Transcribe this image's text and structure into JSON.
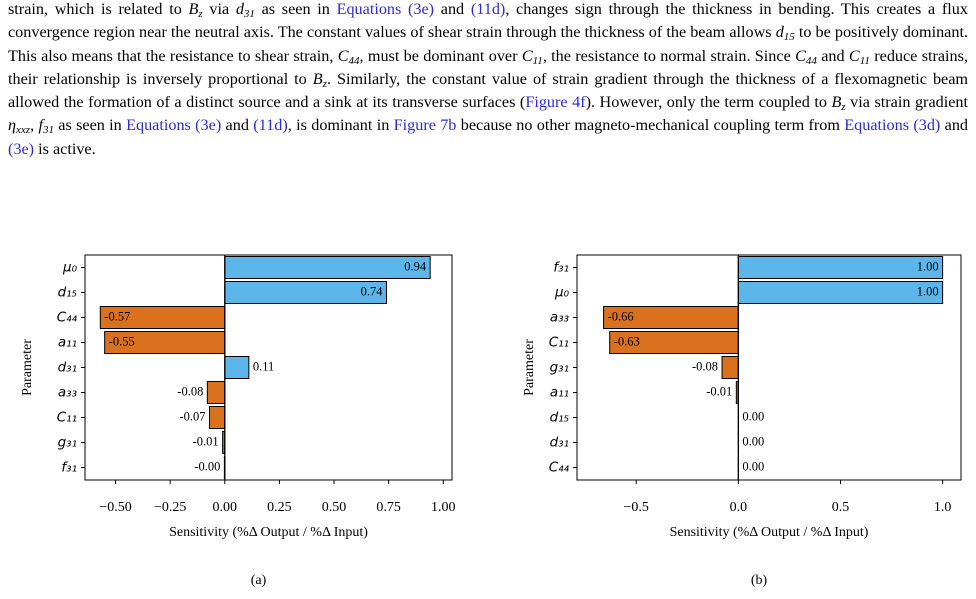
{
  "paragraph": [
    {
      "text": "strain, which is related to "
    },
    {
      "math": "B",
      "sub": "z"
    },
    {
      "text": " via "
    },
    {
      "math": "d",
      "sub": "31"
    },
    {
      "text": " as seen in "
    },
    {
      "link": "Equations (3e)"
    },
    {
      "text": " and "
    },
    {
      "link": "(11d)"
    },
    {
      "text": ", changes sign through the thickness in bending. This creates a flux convergence region near the neutral axis. The constant values of shear strain through the thickness of the beam allows "
    },
    {
      "math": "d",
      "sub": "15"
    },
    {
      "text": " to be positively dominant. This also means that the resistance to shear strain, "
    },
    {
      "math": "C",
      "sub": "44"
    },
    {
      "text": ", must be dominant over "
    },
    {
      "math": "C",
      "sub": "11"
    },
    {
      "text": ", the resistance to normal strain. Since "
    },
    {
      "math": "C",
      "sub": "44"
    },
    {
      "text": " and "
    },
    {
      "math": "C",
      "sub": "11"
    },
    {
      "text": " reduce strains, their relationship is inversely proportional to "
    },
    {
      "math": "B",
      "sub": "z"
    },
    {
      "text": ". Similarly, the constant value of strain gradient through the thickness of a flexomagnetic beam allowed the formation of a distinct source and a sink at its transverse surfaces ("
    },
    {
      "link": "Figure 4f"
    },
    {
      "text": "). However, only the term coupled to "
    },
    {
      "math": "B",
      "sub": "z"
    },
    {
      "text": " via strain gradient "
    },
    {
      "math": "η",
      "sub": "xxz"
    },
    {
      "text": ", "
    },
    {
      "math": "f",
      "sub": "31"
    },
    {
      "text": " as seen in "
    },
    {
      "link": "Equations (3e)"
    },
    {
      "text": " and "
    },
    {
      "link": "(11d)"
    },
    {
      "text": ", is dominant in "
    },
    {
      "link": "Figure 7b"
    },
    {
      "text": " because no other magneto-mechanical coupling term from "
    },
    {
      "link": "Equations (3d)"
    },
    {
      "text": " and "
    },
    {
      "link": "(3e)"
    },
    {
      "text": " is active."
    }
  ],
  "chart_data": [
    {
      "type": "bar",
      "orientation": "horizontal",
      "caption": "(a)",
      "x_label": "Sensitivity (%Δ Output / %Δ Input)",
      "y_label": "Parameter",
      "categories": [
        "μ₀",
        "d₁₅",
        "C₄₄",
        "a₁₁",
        "d₃₁",
        "a₃₃",
        "C₁₁",
        "g₃₁",
        "f₃₁"
      ],
      "values": [
        0.94,
        0.74,
        -0.57,
        -0.55,
        0.11,
        -0.08,
        -0.07,
        -0.01,
        -0.002
      ],
      "value_labels": [
        "0.94",
        "0.74",
        "-0.57",
        "-0.55",
        "0.11",
        "-0.08",
        "-0.07",
        "-0.01",
        "-0.00"
      ],
      "positive_color": "#5cb6ea",
      "negative_color": "#d9711f",
      "xlim": [
        -0.64,
        1.04
      ],
      "xticks": [
        {
          "value": -0.5,
          "label": "−0.50"
        },
        {
          "value": -0.25,
          "label": "−0.25"
        },
        {
          "value": 0,
          "label": "0.00"
        },
        {
          "value": 0.25,
          "label": "0.25"
        },
        {
          "value": 0.5,
          "label": "0.50"
        },
        {
          "value": 0.75,
          "label": "0.75"
        },
        {
          "value": 1,
          "label": "1.00"
        }
      ]
    },
    {
      "type": "bar",
      "orientation": "horizontal",
      "caption": "(b)",
      "x_label": "Sensitivity (%Δ Output / %Δ Input)",
      "y_label": "Parameter",
      "categories": [
        "f₃₁",
        "μ₀",
        "a₃₃",
        "C₁₁",
        "g₃₁",
        "a₁₁",
        "d₁₅",
        "d₃₁",
        "C₄₄"
      ],
      "values": [
        1.0,
        1.0,
        -0.66,
        -0.63,
        -0.08,
        -0.01,
        0,
        0,
        0
      ],
      "value_labels": [
        "1.00",
        "1.00",
        "-0.66",
        "-0.63",
        "-0.08",
        "-0.01",
        "0.00",
        "0.00",
        "0.00"
      ],
      "positive_color": "#5cb6ea",
      "negative_color": "#d9711f",
      "xlim": [
        -0.79,
        1.09
      ],
      "xticks": [
        {
          "value": -0.5,
          "label": "−0.5"
        },
        {
          "value": 0,
          "label": "0.0"
        },
        {
          "value": 0.5,
          "label": "0.5"
        },
        {
          "value": 1,
          "label": "1.0"
        }
      ]
    }
  ]
}
